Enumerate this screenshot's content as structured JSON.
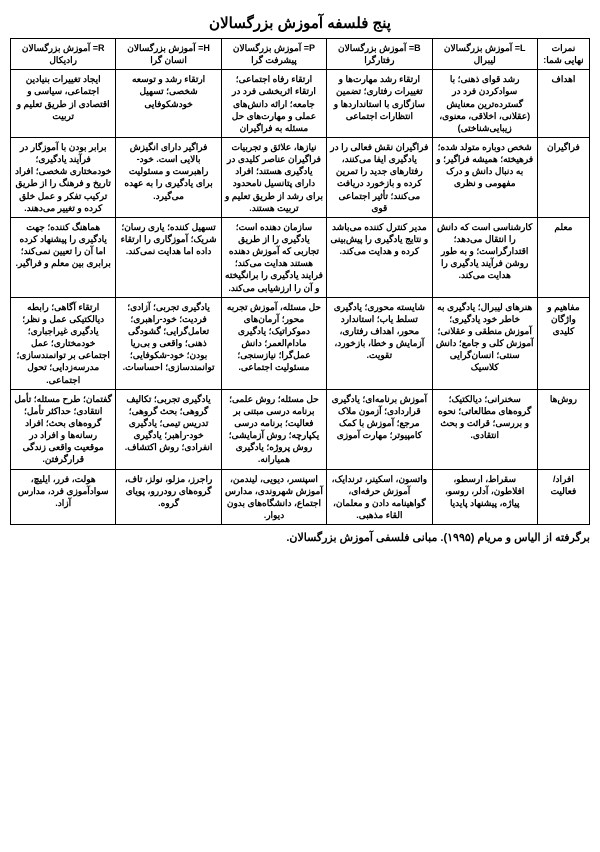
{
  "title": "پنج فلسفه آموزش بزرگسالان",
  "footer": "برگرفته از الیاس و مریام (۱۹۹۵). مبانی فلسفی آموزش بزرگسالان.",
  "headers": {
    "rowlabel": "نمرات نهایی شما:",
    "L": "L= آموزش بزرگسالان لیبرال",
    "B": "B= آموزش بزرگسالان رفتارگرا",
    "P": "P= آموزش بزرگسالان پیشرفت گرا",
    "H": "H= آموزش بزرگسالان انسان گرا",
    "R": "R= آموزش بزرگسالان رادیکال"
  },
  "rows": {
    "r1": {
      "label": "اهداف",
      "L": "رشد قوای ذهنی؛ با سوادکردن فرد در گسترده‌ترین معنایش (عقلانی، اخلاقی، معنوی، زیبایی‌شناختی)",
      "B": "ارتقاء رشد مهارت‌ها و تغییرات رفتاری؛ تضمین سازگاری با استانداردها و انتظارات اجتماعی",
      "P": "ارتقاء رفاه اجتماعی؛ ارتقاء اثربخشی فرد در جامعه؛ ارائه دانش‌های عملی و مهارت‌های حل مسئله به فراگیران",
      "H": "ارتقاء رشد و توسعه شخصی؛ تسهیل خودشکوفایی",
      "R": "ایجاد تغییرات بنیادین اجتماعی، سیاسی و اقتصادی از طریق تعلیم و تربیت"
    },
    "r2": {
      "label": "فراگیران",
      "L": "شخص دوباره متولد شده؛ فرهیخته؛ همیشه فراگیر؛ و به دنبال دانش و درک مفهومی و نظری",
      "B": "فراگیران نقش فعالی را در یادگیری ایفا می‌کنند، رفتارهای جدید را تمرین کرده و بازخورد دریافت می‌کنند؛ تأثیر اجتماعی قوی",
      "P": "نیازها، علائق و تجربیات فراگیران عناصر کلیدی در یادگیری هستند؛ افراد دارای پتانسیل نامحدود برای رشد از طریق تعلیم و تربیت هستند.",
      "H": "فراگیر دارای انگیزش بالایی است. خود-راهبرست و مسئولیت برای یادگیری را به عهده می‌گیرد.",
      "R": "برابر بودن با آموزگار در فرآیند یادگیری؛ خودمختاری شخصی؛ افراد تاریخ و فرهنگ را از طریق ترکیب تفکر و عمل خلق کرده و تغییر می‌دهند."
    },
    "r3": {
      "label": "معلم",
      "L": "کارشناسی است که دانش را انتقال می‌دهد؛ اقتدارگراست؛ و به طور روشن فرآیند یادگیری را هدایت می‌کند.",
      "B": "مدیر کنترل کننده می‌باشد و نتایج یادگیری را پیش‌بینی کرده و هدایت می‌کند.",
      "P": "سازمان دهنده است؛ یادگیری را از طریق تجاربی که آموزش دهنده هستند هدایت می‌کند؛ فرایند یادگیری را برانگیخته و آن را ارزشیابی می‌کند.",
      "H": "تسهیل کننده؛ یاری رسان؛ شریک؛ آموزگاری را ارتقاء داده اما هدایت نمی‌کند.",
      "R": "هماهنگ کننده؛ جهت یادگیری را پیشنهاد کرده اما آن را تعیین نمی‌کند؛ برابری بین معلم و فراگیر."
    },
    "r4": {
      "label": "مفاهیم و واژگان کلیدی",
      "L": "هنرهای لیبرال؛ یادگیری به خاطر خود یادگیری؛ آموزش منطقی و عقلانی؛ آموزش کلی و جامع؛ دانش سنتی؛ انسان‌گرایی کلاسیک",
      "B": "شایسته محوری؛ یادگیری تسلط یاب؛ استاندارد محور، اهداف رفتاری، آزمایش و خطا، بازخورد، تقویت.",
      "P": "حل مسئله، آموزش تجربه محور؛ آرمان‌های دموکراتیک؛ یادگیری مادام‌العمر؛ دانش عمل‌گرا؛ نیازسنجی؛ مسئولیت اجتماعی.",
      "H": "یادگیری تجربی؛ آزادی؛ فردیت؛ خود-راهبری؛ تعامل‌گرایی؛ گشودگی ذهنی؛ واقعی و بی‌ریا بودن؛ خود-شکوفایی؛ توانمندسازی؛ احساسات.",
      "R": "ارتقاء آگاهی؛ رابطه دیالکتیکی عمل و نظر؛ یادگیری غیراجباری؛ خودمختاری؛ عمل اجتماعی بر توانمندسازی؛ مدرسه‌زدایی؛ تحول اجتماعی."
    },
    "r5": {
      "label": "روش‌ها",
      "L": "سخنرانی؛ دیالکتیک؛ گروه‌های مطالعاتی؛ نحوه و بررسی؛ قرائت و بحث انتقادی.",
      "B": "آموزش برنامه‌ای؛ یادگیری قراردادی؛ آزمون ملاک مرجع؛ آموزش با کمک کامپیوتر؛ مهارت آموزی",
      "P": "حل مسئله؛ روش علمی؛ برنامه درسی مبتنی بر فعالیت؛ برنامه درسی یکپارچه؛ روش آزمایشی؛ روش پروژه؛ یادگیری همیارانه.",
      "H": "یادگیری تجربی؛ تکالیف گروهی؛ بحث گروهی؛ تدریس تیمی؛ یادگیری خود-راهبر؛ یادگیری انفرادی؛ روش اکتشاف.",
      "R": "گفتمان؛ طرح مسئله؛ تأمل انتقادی؛ حداکثر تأمل؛ گروه‌های بحث؛ افراد رسانه‌ها و افراد در موقعیت واقعی زندگی قرارگرفتن."
    },
    "r6": {
      "label": "افراد/ فعالیت",
      "L": "سقراط، ارسطو، افلاطون، آدلر، روسو، پیاژه، پیشنهاد پایدیا",
      "B": "واتسون، اسکینر، ترندایک، آموزش حرفه‌ای، گواهینامه دادن و معلمان، القاء مذهبی.",
      "P": "اسپنسر، دیویی، لیندمن، آموزش شهروندی، مدارس اجتماع، دانشگاه‌های بدون دیوار.",
      "H": "راجرز، مزلو، نولز، تاف، گروه‌های رودررو، پویای گروه.",
      "R": "هولت، فرر، ایلیچ، سوادآموزی فرد، مدارس آزاد."
    }
  }
}
